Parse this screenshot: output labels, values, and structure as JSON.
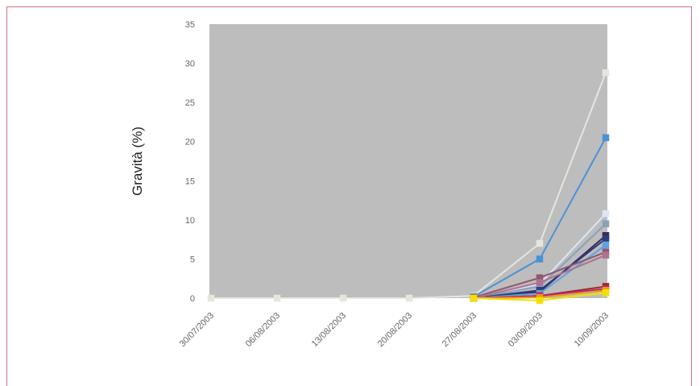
{
  "chart_data": {
    "type": "line",
    "title": "",
    "xlabel": "",
    "ylabel": "Gravità (%)",
    "ylim": [
      0,
      35
    ],
    "yticks": [
      0,
      5,
      10,
      15,
      20,
      25,
      30,
      35
    ],
    "grid": false,
    "legend": "none",
    "categories": [
      "30/07/2003",
      "06/08/2003",
      "13/08/2003",
      "20/08/2003",
      "27/08/2003",
      "03/09/2003",
      "10/09/2003"
    ],
    "series": [
      {
        "color": "#e2e8dc",
        "values": [
          0,
          0,
          0,
          0,
          0.3,
          7.0,
          28.8
        ]
      },
      {
        "color": "#4a92d6",
        "values": [
          null,
          null,
          null,
          null,
          0.2,
          5.0,
          20.5
        ]
      },
      {
        "color": "#dce6f4",
        "values": [
          null,
          null,
          null,
          null,
          0.1,
          1.8,
          10.8
        ]
      },
      {
        "color": "#8aa0bc",
        "values": [
          null,
          null,
          null,
          null,
          0.0,
          1.5,
          9.5
        ]
      },
      {
        "color": "#3a2a5a",
        "values": [
          null,
          null,
          null,
          null,
          0.0,
          0.8,
          8.0
        ]
      },
      {
        "color": "#2e3d7a",
        "values": [
          null,
          null,
          null,
          null,
          0.0,
          1.0,
          7.6
        ]
      },
      {
        "color": "#5fa3e0",
        "values": [
          null,
          null,
          null,
          null,
          0.0,
          0.6,
          6.8
        ]
      },
      {
        "color": "#8b5a6e",
        "values": [
          null,
          null,
          null,
          null,
          0.1,
          2.6,
          5.9
        ]
      },
      {
        "color": "#b07090",
        "values": [
          null,
          null,
          null,
          null,
          0.0,
          2.0,
          5.5
        ]
      },
      {
        "color": "#9a2a2a",
        "values": [
          null,
          null,
          null,
          null,
          0.0,
          0.3,
          1.5
        ]
      },
      {
        "color": "#c02080",
        "values": [
          null,
          null,
          null,
          null,
          0.0,
          0.3,
          1.2
        ]
      },
      {
        "color": "#e8a000",
        "values": [
          null,
          null,
          null,
          null,
          0.0,
          0.1,
          1.0
        ]
      },
      {
        "color": "#f3e000",
        "values": [
          null,
          null,
          null,
          null,
          0.0,
          -0.3,
          0.7
        ]
      }
    ]
  }
}
